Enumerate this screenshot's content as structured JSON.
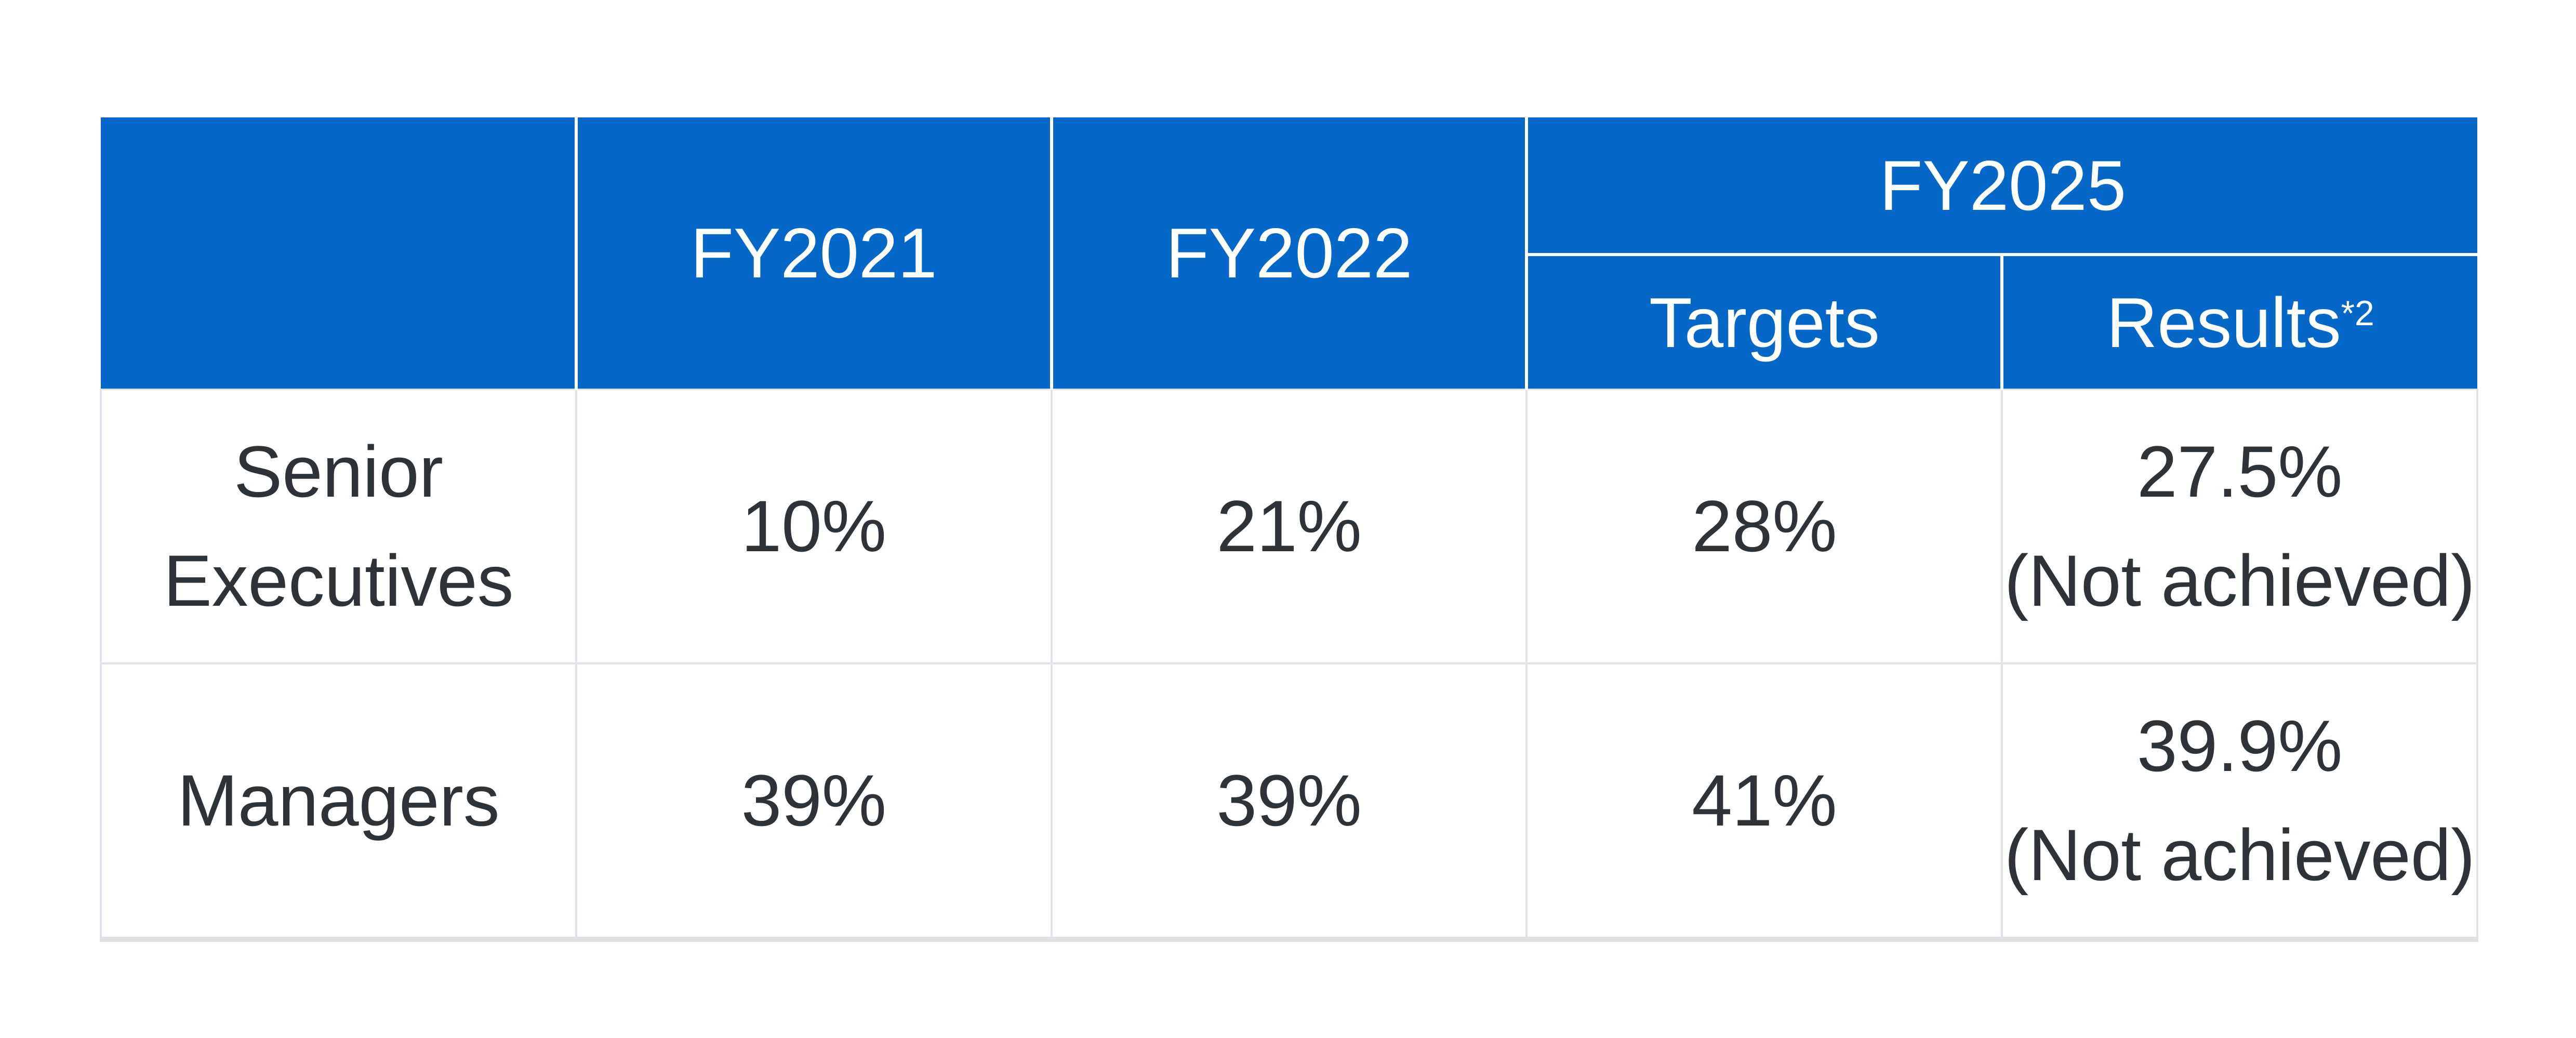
{
  "table": {
    "header": {
      "empty": "",
      "fy2021": "FY2021",
      "fy2022": "FY2022",
      "fy2025": "FY2025",
      "targets": "Targets",
      "results": "Results",
      "results_superscript": "*2"
    },
    "rows": [
      {
        "label": "Senior Executives",
        "fy2021": "10%",
        "fy2022": "21%",
        "fy2025_target": "28%",
        "fy2025_result": "27.5%",
        "fy2025_result_note": "(Not achieved)"
      },
      {
        "label": "Managers",
        "fy2021": "39%",
        "fy2022": "39%",
        "fy2025_target": "41%",
        "fy2025_result": "39.9%",
        "fy2025_result_note": "(Not achieved)"
      }
    ],
    "colors": {
      "header_blue": "#0567C7",
      "header_text": "#FFFFFF",
      "body_text": "#2E3338",
      "grid_line": "#E0E3E7",
      "bottom_border": "#DFE1E7",
      "background": "#FFFFFF"
    }
  }
}
